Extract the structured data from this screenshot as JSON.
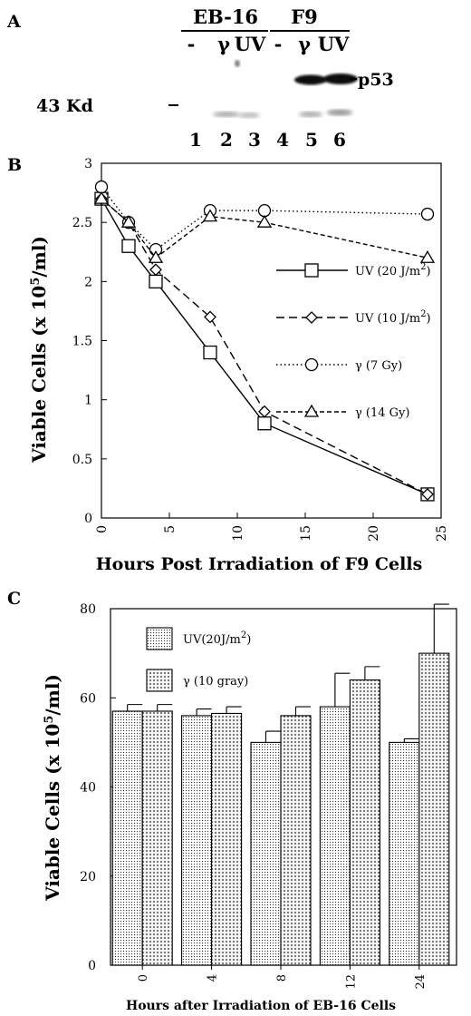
{
  "panel_a": {
    "label": "A",
    "groups": [
      {
        "name": "EB-16",
        "lanes": [
          "-",
          "γ",
          "UV"
        ]
      },
      {
        "name": "F9",
        "lanes": [
          "-",
          "γ",
          "UV"
        ]
      }
    ],
    "marker": "43 Kd",
    "band_label": "p53",
    "lane_numbers": [
      "1",
      "2",
      "3",
      "4",
      "5",
      "6"
    ]
  },
  "chart_data": [
    {
      "panel": "B",
      "type": "line",
      "xlabel": "Hours Post Irradiation of F9 Cells",
      "ylabel": "Viable Cells (x 10^5/ml)",
      "xlim": [
        0,
        25
      ],
      "ylim": [
        0,
        3
      ],
      "xticks": [
        "0",
        "5",
        "10",
        "15",
        "20",
        "25"
      ],
      "yticks": [
        "0",
        "0.5",
        "1",
        "1.5",
        "2",
        "2.5",
        "3"
      ],
      "legend_position": "right",
      "series": [
        {
          "name": "UV (20 J/m2)",
          "marker": "square",
          "dash": "solid",
          "x": [
            0,
            2,
            4,
            8,
            12,
            24
          ],
          "y": [
            2.7,
            2.3,
            2.0,
            1.4,
            0.8,
            0.2
          ]
        },
        {
          "name": "UV (10 J/m2)",
          "marker": "diamond",
          "dash": "long-dash",
          "x": [
            0,
            2,
            4,
            8,
            12,
            24
          ],
          "y": [
            2.7,
            2.5,
            2.1,
            1.7,
            0.9,
            0.2
          ]
        },
        {
          "name": "γ (7 Gy)",
          "marker": "circle",
          "dash": "dotted",
          "x": [
            0,
            2,
            4,
            8,
            12,
            24
          ],
          "y": [
            2.8,
            2.5,
            2.27,
            2.6,
            2.6,
            2.57
          ]
        },
        {
          "name": "γ (14 Gy)",
          "marker": "triangle",
          "dash": "short-dash",
          "x": [
            0,
            2,
            4,
            8,
            12,
            24
          ],
          "y": [
            2.7,
            2.5,
            2.2,
            2.55,
            2.5,
            2.2
          ]
        }
      ]
    },
    {
      "panel": "C",
      "type": "bar",
      "xlabel": "Hours after Irradiation of EB-16 Cells",
      "ylabel": "Viable Cells (x 10^5/ml)",
      "categories": [
        "0",
        "4",
        "8",
        "12",
        "24"
      ],
      "ylim": [
        0,
        80
      ],
      "yticks": [
        "0",
        "20",
        "40",
        "60",
        "80"
      ],
      "legend_position": "top-left",
      "series": [
        {
          "name": "UV(20J/m2)",
          "pattern": "fine-dots",
          "values": [
            57,
            56,
            50,
            58,
            50
          ],
          "errors": [
            1.5,
            1.5,
            2.5,
            7.5,
            0.8
          ]
        },
        {
          "name": "γ (10 gray)",
          "pattern": "coarse-dots",
          "values": [
            57,
            56.5,
            56,
            64,
            70
          ],
          "errors": [
            1.5,
            1.5,
            2,
            3,
            11
          ]
        }
      ]
    }
  ]
}
